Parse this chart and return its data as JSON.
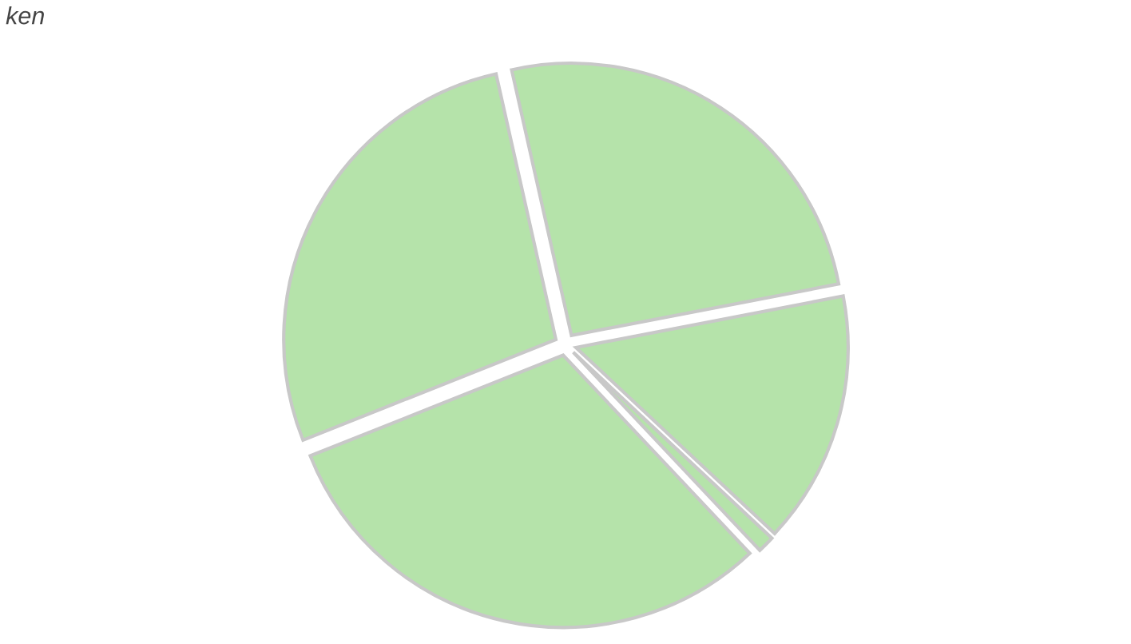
{
  "chart_data": {
    "type": "pie",
    "title": "ken",
    "categories": [
      null,
      null,
      null,
      null,
      null
    ],
    "values": [
      25.5,
      15,
      1,
      31,
      27.5
    ],
    "colors": [
      "#b5e3aa",
      "#b5e3aa",
      "#b5e3aa",
      "#b5e3aa",
      "#b5e3aa"
    ]
  }
}
